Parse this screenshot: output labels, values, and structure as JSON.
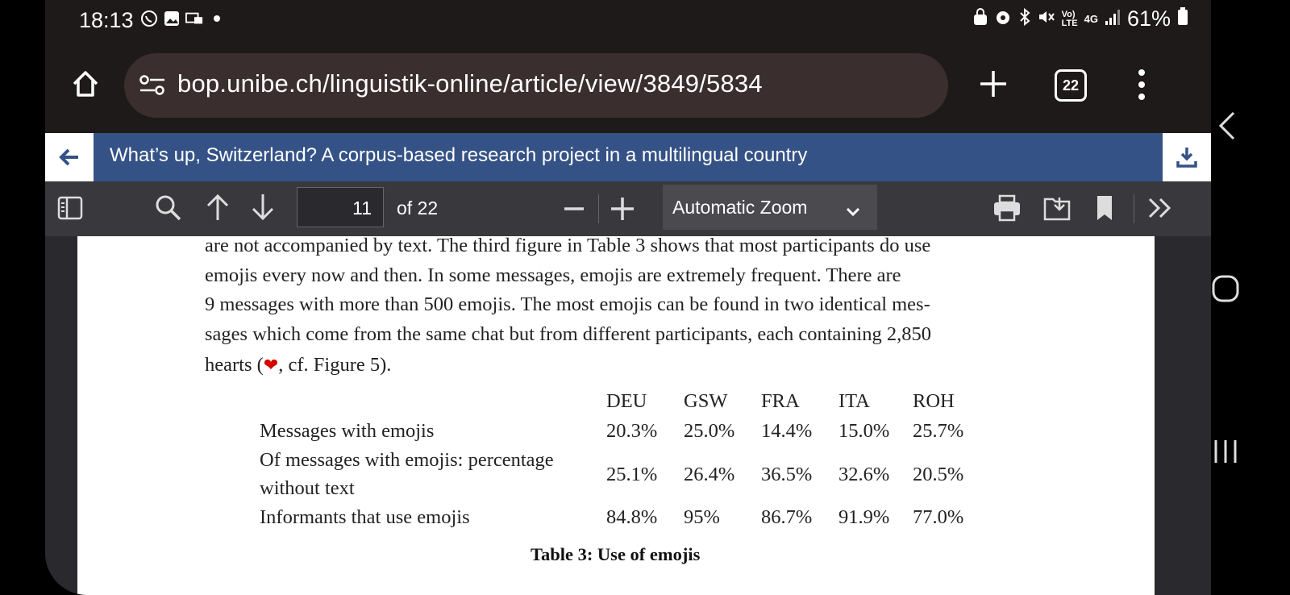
{
  "status": {
    "time": "18:13",
    "network": "4G",
    "battery": "61%"
  },
  "browser": {
    "url": "bop.unibe.ch/linguistik-online/article/view/3849/5834",
    "tab_count": "22"
  },
  "doc": {
    "title": "What’s up, Switzerland? A corpus-based research project in a multilingual country"
  },
  "pdf_toolbar": {
    "page_number": "11",
    "page_total": "of 22",
    "zoom": "Automatic Zoom"
  },
  "content": {
    "lines": [
      "are not accompanied by text. The third figure in Table 3 shows that most participants do use",
      "emojis every now and then. In some messages, emojis are extremely frequent. There are",
      "9 messages with more than 500 emojis. The most emojis can be found in two identical mes-",
      "sages which come from the same chat but from different participants, each containing 2,850"
    ],
    "last_line_start": "hearts (",
    "last_line_end": ", cf. Figure 5).",
    "heart_glyph": "❤"
  },
  "table": {
    "columns": [
      "DEU",
      "GSW",
      "FRA",
      "ITA",
      "ROH"
    ],
    "rows": [
      {
        "label": "Messages with emojis",
        "values": [
          "20.3%",
          "25.0%",
          "14.4%",
          "15.0%",
          "25.7%"
        ]
      },
      {
        "label": "Of messages with emojis: percentage",
        "label2": "without text",
        "values": [
          "25.1%",
          "26.4%",
          "36.5%",
          "32.6%",
          "20.5%"
        ]
      },
      {
        "label": "Informants that use emojis",
        "values": [
          "84.8%",
          "95%",
          "86.7%",
          "91.9%",
          "77.0%"
        ]
      }
    ],
    "caption": "Table 3: Use of emojis"
  },
  "colors": {
    "title_bar": "#355286",
    "toolbar": "#38383d",
    "heart": "#d40000"
  }
}
